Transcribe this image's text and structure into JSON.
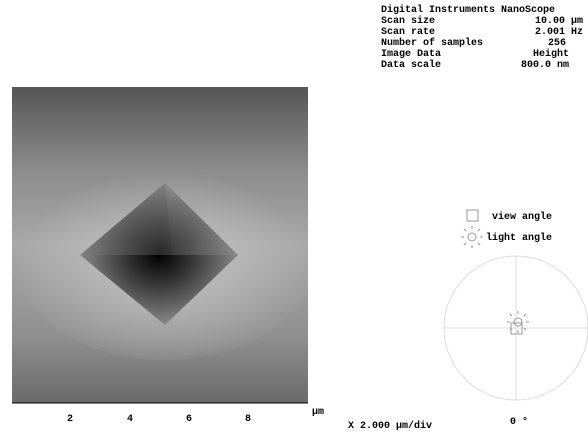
{
  "header": {
    "title": "Digital Instruments NanoScope",
    "rows": [
      [
        "Scan size",
        "10.00 µm"
      ],
      [
        "Scan rate",
        "2.001 Hz"
      ],
      [
        "Number of samples",
        "256"
      ],
      [
        "Image Data",
        "Height"
      ],
      [
        "Data scale",
        "800.0 nm"
      ]
    ]
  },
  "axis": {
    "ticks": [
      "2",
      "4",
      "6",
      "8"
    ],
    "unit": "µm",
    "scale": "X 2.000 µm/div"
  },
  "legend": {
    "view": "view angle",
    "light": "light angle"
  },
  "angle": "0 °"
}
